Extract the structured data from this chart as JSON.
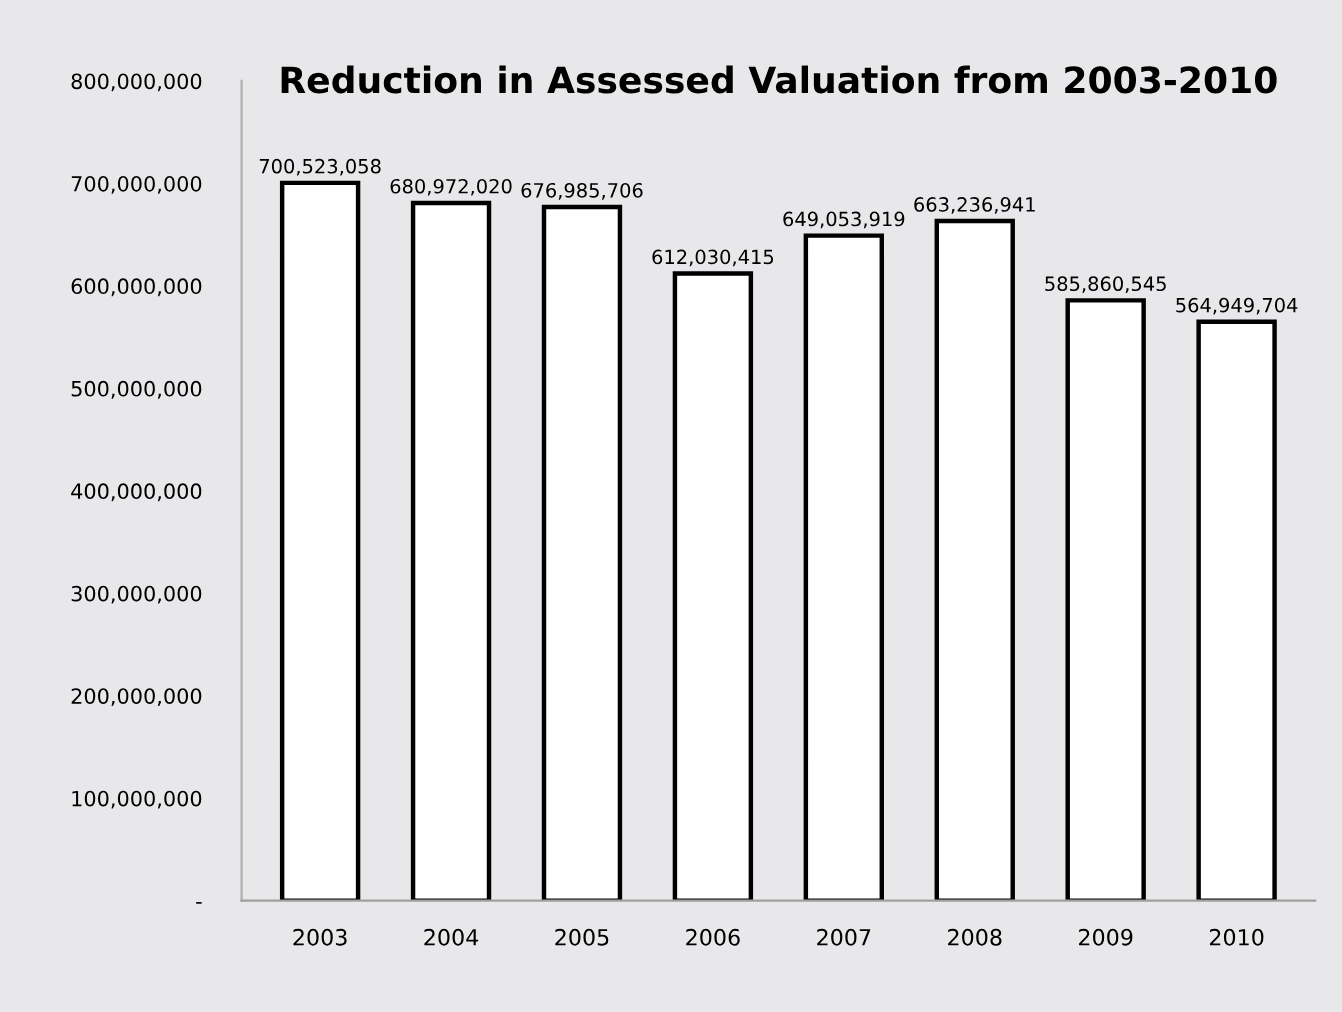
{
  "chart_data": {
    "type": "bar",
    "title": "Reduction in Assessed Valuation from 2003-2010",
    "categories": [
      "2003",
      "2004",
      "2005",
      "2006",
      "2007",
      "2008",
      "2009",
      "2010"
    ],
    "values": [
      700523058,
      680972020,
      676985706,
      612030415,
      649053919,
      663236941,
      585860545,
      564949704
    ],
    "value_labels": [
      "700,523,058",
      "680,972,020",
      "676,985,706",
      "612,030,415",
      "649,053,919",
      "663,236,941",
      "585,860,545",
      "564,949,704"
    ],
    "color": "#ffffff",
    "ylim": [
      0,
      800000000
    ],
    "yticks": [
      {
        "value": 0,
        "label": "-"
      },
      {
        "value": 100000000,
        "label": "100,000,000"
      },
      {
        "value": 200000000,
        "label": "200,000,000"
      },
      {
        "value": 300000000,
        "label": "300,000,000"
      },
      {
        "value": 400000000,
        "label": "400,000,000"
      },
      {
        "value": 500000000,
        "label": "500,000,000"
      },
      {
        "value": 600000000,
        "label": "600,000,000"
      },
      {
        "value": 700000000,
        "label": "700,000,000"
      },
      {
        "value": 800000000,
        "label": "800,000,000"
      }
    ],
    "grid": false
  }
}
